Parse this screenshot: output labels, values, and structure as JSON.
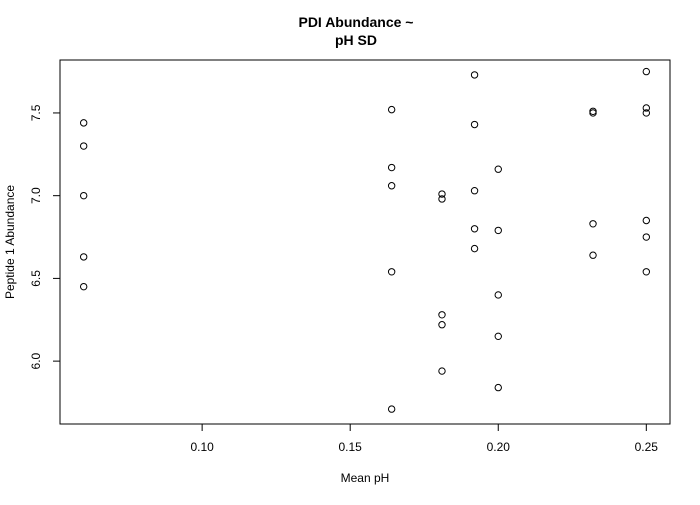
{
  "chart_data": {
    "type": "scatter",
    "title_lines": [
      "PDI Abundance ~",
      "pH SD"
    ],
    "xlabel": "Mean pH",
    "ylabel": "Peptide 1 Abundance",
    "xlim": [
      0.052,
      0.258
    ],
    "ylim": [
      5.62,
      7.82
    ],
    "x_ticks": [
      0.1,
      0.15,
      0.2,
      0.25
    ],
    "x_tick_labels": [
      "0.10",
      "0.15",
      "0.20",
      "0.25"
    ],
    "y_ticks": [
      6.0,
      6.5,
      7.0,
      7.5
    ],
    "y_tick_labels": [
      "6.0",
      "6.5",
      "7.0",
      "7.5"
    ],
    "grid": false,
    "marker": "open-circle",
    "points": [
      {
        "x": 0.06,
        "y": 7.44
      },
      {
        "x": 0.06,
        "y": 7.3
      },
      {
        "x": 0.06,
        "y": 7.0
      },
      {
        "x": 0.06,
        "y": 6.63
      },
      {
        "x": 0.06,
        "y": 6.45
      },
      {
        "x": 0.164,
        "y": 7.52
      },
      {
        "x": 0.164,
        "y": 7.17
      },
      {
        "x": 0.164,
        "y": 7.06
      },
      {
        "x": 0.164,
        "y": 6.54
      },
      {
        "x": 0.164,
        "y": 5.71
      },
      {
        "x": 0.181,
        "y": 7.01
      },
      {
        "x": 0.181,
        "y": 6.98
      },
      {
        "x": 0.181,
        "y": 6.28
      },
      {
        "x": 0.181,
        "y": 6.22
      },
      {
        "x": 0.181,
        "y": 5.94
      },
      {
        "x": 0.192,
        "y": 7.73
      },
      {
        "x": 0.192,
        "y": 7.43
      },
      {
        "x": 0.192,
        "y": 7.03
      },
      {
        "x": 0.192,
        "y": 6.8
      },
      {
        "x": 0.192,
        "y": 6.68
      },
      {
        "x": 0.2,
        "y": 7.16
      },
      {
        "x": 0.2,
        "y": 6.79
      },
      {
        "x": 0.2,
        "y": 6.4
      },
      {
        "x": 0.2,
        "y": 6.15
      },
      {
        "x": 0.2,
        "y": 5.84
      },
      {
        "x": 0.232,
        "y": 7.51
      },
      {
        "x": 0.232,
        "y": 7.5
      },
      {
        "x": 0.232,
        "y": 6.83
      },
      {
        "x": 0.232,
        "y": 6.64
      },
      {
        "x": 0.25,
        "y": 7.75
      },
      {
        "x": 0.25,
        "y": 7.53
      },
      {
        "x": 0.25,
        "y": 7.5
      },
      {
        "x": 0.25,
        "y": 6.85
      },
      {
        "x": 0.25,
        "y": 6.75
      },
      {
        "x": 0.25,
        "y": 6.54
      }
    ],
    "colors": {
      "marker": "#000000",
      "axis": "#000000",
      "background": "#ffffff"
    }
  }
}
